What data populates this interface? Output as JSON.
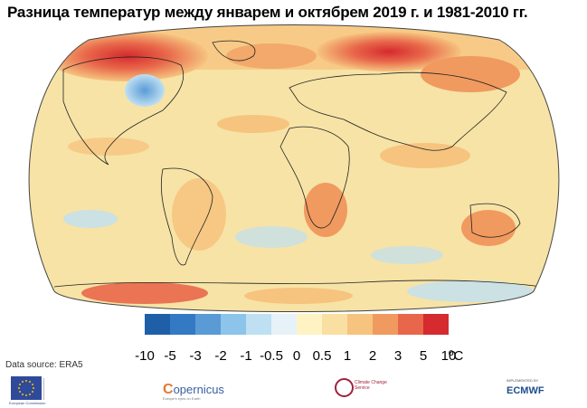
{
  "title": "Разница температур между январем и октябрем 2019 г. и 1981-2010 гг.",
  "map": {
    "type": "global temperature anomaly map",
    "projection": "Robinson",
    "fill": "#f7e3a6"
  },
  "legend": {
    "labels": [
      "-10",
      "-5",
      "-3",
      "-2",
      "-1",
      "-0.5",
      "0",
      "0.5",
      "1",
      "2",
      "3",
      "5",
      "10"
    ],
    "unit": "ºC",
    "colors": [
      "#1f5fa8",
      "#3479c4",
      "#5a9bd6",
      "#8cc4ea",
      "#bfe0f2",
      "#e6f2f7",
      "#fff3c4",
      "#f9e0a2",
      "#f6c47f",
      "#f19a5f",
      "#e8674a",
      "#d52a2e"
    ]
  },
  "source": "Data source: ERA5",
  "logos": {
    "eu_text": "European Commission",
    "copernicus": "Copernicus",
    "copernicus_sub": "Europe's eyes on Earth",
    "c3s": "Climate Change Service",
    "ecmwf": "ECMWF",
    "ecmwf_small": "IMPLEMENTED BY"
  }
}
